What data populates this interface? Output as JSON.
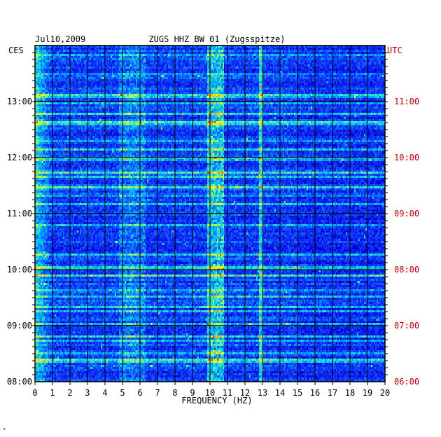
{
  "chart_data": {
    "type": "heatmap",
    "title_left": "Jul10,2009",
    "title_center": "ZUGS HHZ BW 01 (Zugsspitze)",
    "left_timezone": "CES",
    "right_timezone": "UTC",
    "xlabel": "FREQUENCY (HZ)",
    "xlim": [
      0,
      20
    ],
    "x_ticks": [
      "0",
      "1",
      "2",
      "3",
      "4",
      "5",
      "6",
      "7",
      "8",
      "9",
      "10",
      "11",
      "12",
      "13",
      "14",
      "15",
      "16",
      "17",
      "18",
      "19",
      "20"
    ],
    "left_time_ticks": [
      "13:00",
      "12:00",
      "11:00",
      "10:00",
      "09:00",
      "08:00"
    ],
    "right_time_ticks": [
      "11:00",
      "10:00",
      "09:00",
      "08:00",
      "07:00",
      "06:00"
    ],
    "time_range_ces": [
      "08:00",
      "14:00"
    ],
    "grid": true,
    "colormap": [
      "#00008b",
      "#0000cd",
      "#1e3cff",
      "#00c8ff",
      "#7cff7c",
      "#ffff00",
      "#ff8000",
      "#ff0000"
    ],
    "dominant_features_hz": [
      0.3,
      5.5,
      10.3,
      12.9
    ],
    "corner_mark": "*"
  },
  "colors": {
    "background": "#ffffff",
    "utc_label": "#c00000",
    "axis_text": "#000000",
    "plot_background": "#1028c8"
  }
}
